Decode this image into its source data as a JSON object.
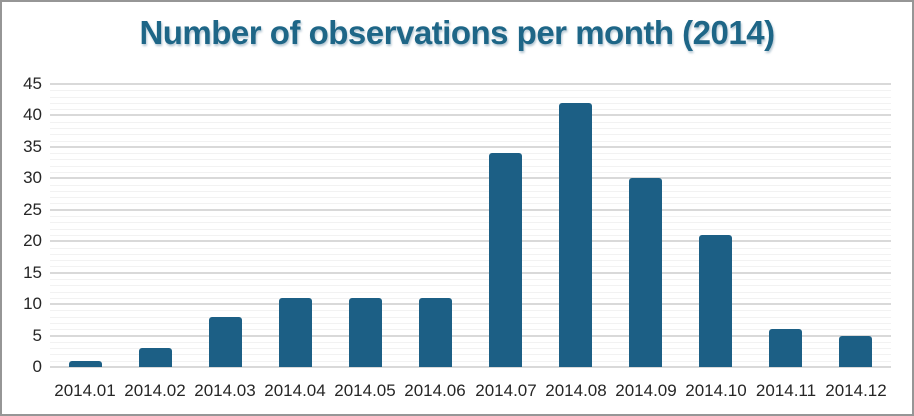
{
  "frame": {
    "background": "#ffffff",
    "border_color": "#969696"
  },
  "chart_data": {
    "type": "bar",
    "title": "Number of observations per month (2014)",
    "categories": [
      "2014.01",
      "2014.02",
      "2014.03",
      "2014.04",
      "2014.05",
      "2014.06",
      "2014.07",
      "2014.08",
      "2014.09",
      "2014.10",
      "2014.11",
      "2014.12"
    ],
    "values": [
      1,
      3,
      8,
      11,
      11,
      11,
      34,
      42,
      30,
      21,
      6,
      5
    ],
    "xlabel": "",
    "ylabel": "",
    "ylim": [
      0,
      45
    ],
    "ytick_step": 5,
    "yticks": [
      0,
      5,
      10,
      15,
      20,
      25,
      30,
      35,
      40,
      45
    ],
    "minor_grid_step": 1,
    "grid": true,
    "legend_position": "none",
    "colors": {
      "bar": "#1c5f85",
      "title": "#1e6687",
      "axis_labels": "#262626",
      "major_grid": "#d9d9d9",
      "minor_grid": "#f2f2f2"
    }
  }
}
